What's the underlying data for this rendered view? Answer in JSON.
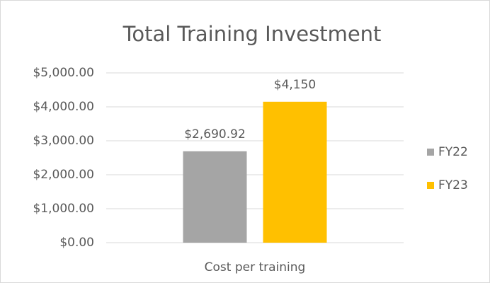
{
  "chart_data": {
    "type": "bar",
    "title": "Total Training Investment",
    "categories": [
      "Cost per training"
    ],
    "series": [
      {
        "name": "FY22",
        "color": "#a5a5a5",
        "values": [
          2690.92
        ],
        "value_labels": [
          "$2,690.92"
        ]
      },
      {
        "name": "FY23",
        "color": "#ffc000",
        "values": [
          4150
        ],
        "value_labels": [
          "$4,150"
        ]
      }
    ],
    "ylim": [
      0,
      5000
    ],
    "yticks": [
      {
        "value": 0,
        "label": "$0.00"
      },
      {
        "value": 1000,
        "label": "$1,000.00"
      },
      {
        "value": 2000,
        "label": "$2,000.00"
      },
      {
        "value": 3000,
        "label": "$3,000.00"
      },
      {
        "value": 4000,
        "label": "$4,000.00"
      },
      {
        "value": 5000,
        "label": "$5,000.00"
      }
    ],
    "grid": true,
    "legend": "right"
  }
}
